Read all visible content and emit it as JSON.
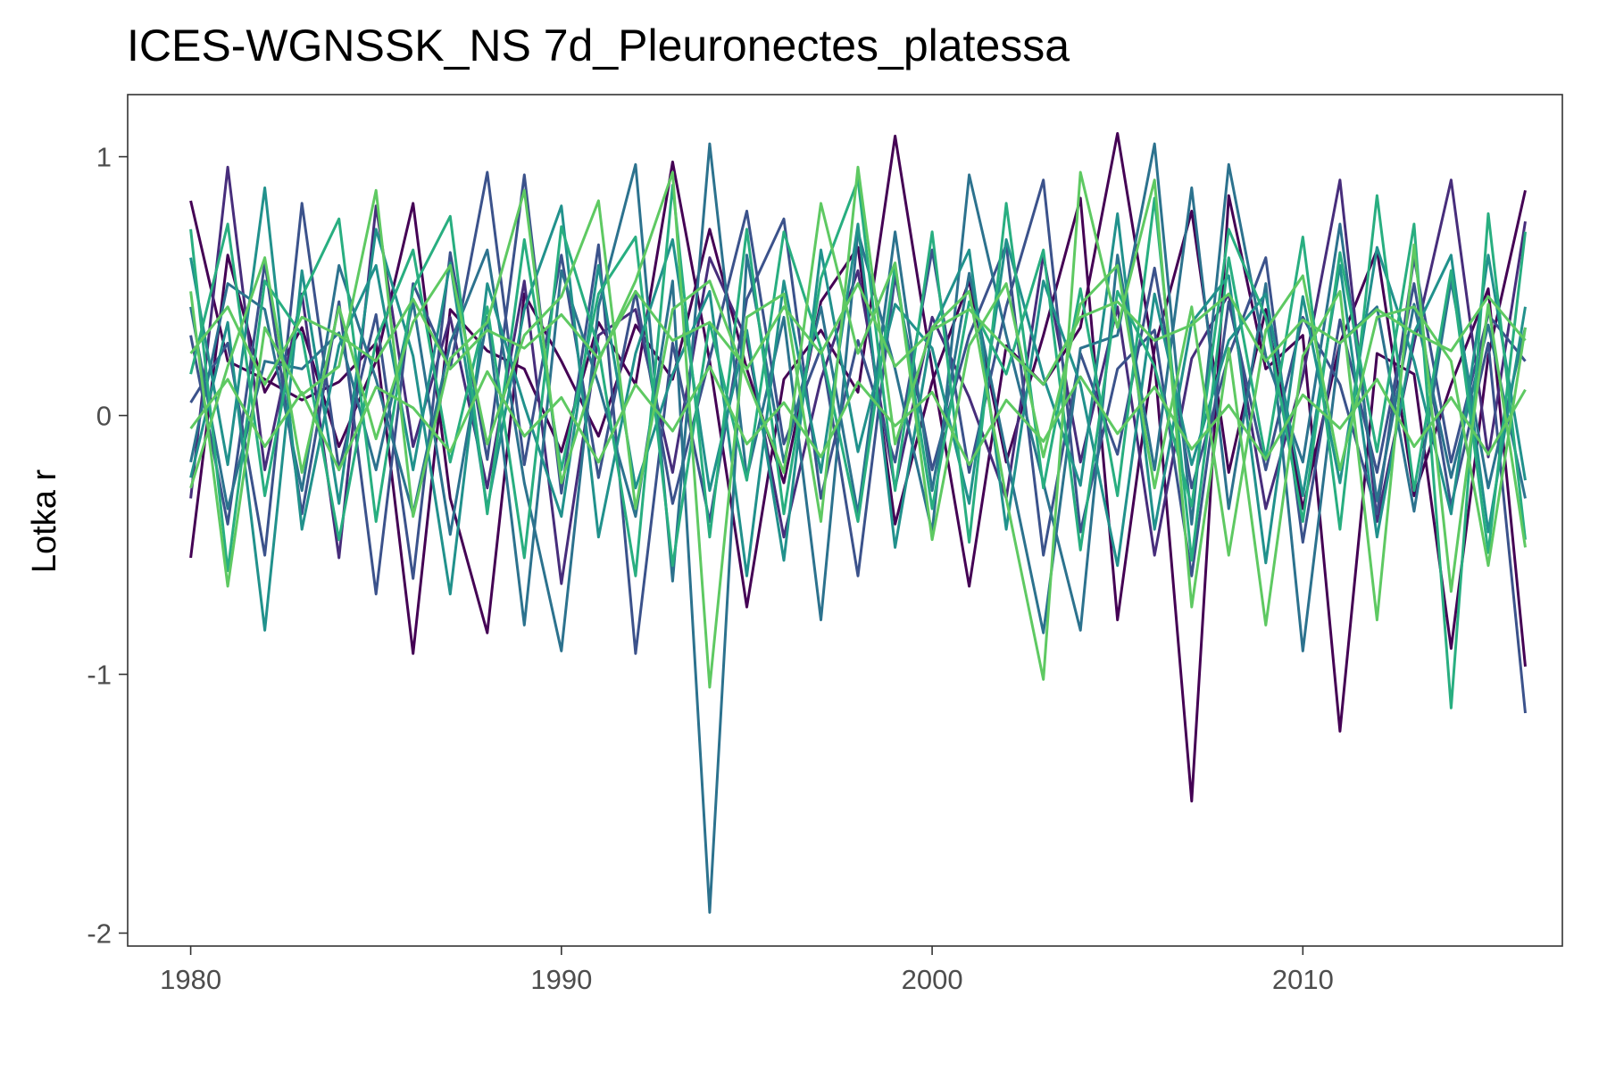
{
  "chart_data": {
    "type": "line",
    "title": "ICES-WGNSSK_NS 7d_Pleuronectes_platessa",
    "xlabel": "",
    "ylabel": "Lotka r",
    "xlim": [
      1978.3,
      2017.0
    ],
    "ylim": [
      -2.05,
      1.24
    ],
    "x_ticks": [
      1980,
      1990,
      2000,
      2010
    ],
    "x_tick_labels": [
      "1980",
      "1990",
      "2000",
      "2010"
    ],
    "y_ticks": [
      -2,
      -1,
      0,
      1
    ],
    "y_tick_labels": [
      "-2",
      "-1",
      "0",
      "1"
    ],
    "grid": false,
    "legend": "none",
    "colors": [
      "#440154",
      "#472d7b",
      "#3b528b",
      "#2c728e",
      "#21918c",
      "#28ae80",
      "#5ec962"
    ],
    "x": [
      1980,
      1981,
      1982,
      1983,
      1984,
      1985,
      1986,
      1987,
      1988,
      1989,
      1990,
      1991,
      1992,
      1993,
      1994,
      1995,
      1996,
      1997,
      1998,
      1999,
      2000,
      2001,
      2002,
      2003,
      2004,
      2005,
      2006,
      2007,
      2008,
      2009,
      2010,
      2011,
      2012,
      2013,
      2014,
      2015,
      2016
    ],
    "series": [
      {
        "color": "#440154",
        "values": [
          0.83,
          0.21,
          0.14,
          0.06,
          0.13,
          0.28,
          -0.92,
          0.41,
          0.25,
          0.18,
          -0.14,
          0.36,
          0.12,
          0.98,
          0.21,
          -0.74,
          0.14,
          0.33,
          0.09,
          1.08,
          0.18,
          -0.66,
          0.27,
          0.12,
          0.34,
          1.09,
          0.21,
          -1.49,
          0.85,
          0.18,
          0.31,
          -1.22,
          0.24,
          0.16,
          -0.9,
          0.23,
          0.87
        ]
      },
      {
        "color": "#440154",
        "values": [
          -0.55,
          0.62,
          0.09,
          0.34,
          -0.12,
          0.21,
          0.82,
          -0.32,
          -0.84,
          0.47,
          0.21,
          -0.08,
          0.35,
          0.14,
          0.72,
          0.18,
          -0.26,
          0.44,
          0.65,
          -0.42,
          0.13,
          0.52,
          -0.18,
          0.31,
          0.84,
          -0.79,
          0.26,
          0.79,
          -0.22,
          0.41,
          -0.36,
          0.28,
          0.64,
          -0.31,
          0.12,
          0.49,
          -0.97
        ]
      },
      {
        "color": "#472d7b",
        "values": [
          -0.32,
          0.96,
          -0.21,
          0.47,
          -0.55,
          0.81,
          -0.12,
          0.38,
          -0.28,
          0.52,
          -0.65,
          0.31,
          0.41,
          -0.22,
          0.61,
          0.29,
          -0.47,
          0.14,
          0.56,
          -0.28,
          0.38,
          0.07,
          -0.32,
          0.62,
          -0.18,
          0.42,
          -0.54,
          0.22,
          0.47,
          -0.36,
          0.15,
          0.91,
          -0.41,
          0.28,
          0.91,
          -0.16,
          0.75
        ]
      },
      {
        "color": "#3b528b",
        "values": [
          0.31,
          -0.42,
          0.59,
          -0.38,
          0.44,
          -0.69,
          0.51,
          0.18,
          0.94,
          -0.19,
          0.62,
          -0.24,
          0.48,
          -0.34,
          0.22,
          0.79,
          -0.11,
          0.26,
          -0.62,
          0.54,
          -0.21,
          0.31,
          0.66,
          -0.54,
          0.24,
          -0.15,
          0.57,
          -0.28,
          0.23,
          0.61,
          -0.49,
          0.37,
          -0.22,
          0.51,
          -0.35,
          0.28,
          -1.15
        ]
      },
      {
        "color": "#3b528b",
        "values": [
          0.05,
          0.28,
          -0.54,
          0.82,
          -0.21,
          0.39,
          -0.63,
          0.63,
          -0.17,
          0.93,
          -0.3,
          0.66,
          -0.92,
          0.28,
          -0.41,
          0.45,
          0.76,
          -0.32,
          0.29,
          -0.18,
          0.64,
          -0.22,
          0.42,
          0.91,
          -0.45,
          0.18,
          0.33,
          -0.62,
          0.44,
          -0.21,
          0.38,
          0.12,
          -0.38,
          0.61,
          -0.18,
          0.39,
          0.21
        ]
      },
      {
        "color": "#2c728e",
        "values": [
          0.42,
          -0.36,
          0.21,
          0.18,
          0.32,
          -0.21,
          0.44,
          -0.46,
          0.38,
          -0.81,
          0.56,
          0.12,
          -0.39,
          0.52,
          -1.92,
          0.62,
          -0.18,
          0.42,
          -0.38,
          0.71,
          -0.29,
          0.55,
          -0.15,
          -0.84,
          0.26,
          0.31,
          1.05,
          -0.42,
          0.97,
          0.23,
          -0.18,
          0.74,
          -0.33,
          0.43,
          -0.24,
          0.35,
          -0.32
        ]
      },
      {
        "color": "#2c728e",
        "values": [
          -0.18,
          0.51,
          0.41,
          -0.29,
          0.58,
          0.14,
          -0.38,
          0.28,
          0.64,
          -0.26,
          -0.91,
          0.42,
          0.97,
          -0.64,
          1.05,
          -0.24,
          0.38,
          -0.79,
          0.71,
          0.18,
          -0.45,
          0.93,
          0.31,
          -0.26,
          -0.83,
          0.62,
          -0.21,
          0.88,
          -0.36,
          0.51,
          -0.91,
          0.28,
          0.42,
          -0.37,
          0.52,
          -0.28,
          0.34
        ]
      },
      {
        "color": "#21918c",
        "values": [
          0.61,
          -0.19,
          0.88,
          -0.44,
          0.27,
          0.58,
          -0.21,
          0.59,
          -0.36,
          0.41,
          0.81,
          -0.47,
          0.24,
          0.68,
          -0.29,
          0.33,
          -0.56,
          0.64,
          -0.14,
          0.43,
          0.26,
          -0.34,
          0.68,
          0.15,
          -0.27,
          0.78,
          -0.44,
          0.36,
          0.54,
          -0.57,
          0.46,
          -0.26,
          0.65,
          0.21,
          -0.38,
          0.62,
          -0.25
        ]
      },
      {
        "color": "#21918c",
        "values": [
          -0.24,
          0.36,
          -0.83,
          0.56,
          -0.34,
          0.72,
          0.23,
          -0.69,
          0.51,
          0.04,
          -0.39,
          0.58,
          -0.28,
          0.16,
          0.48,
          -0.62,
          0.52,
          -0.22,
          0.74,
          -0.51,
          0.33,
          0.64,
          -0.44,
          0.52,
          0.12,
          -0.58,
          0.47,
          -0.19,
          0.29,
          0.47,
          -0.31,
          0.58,
          -0.47,
          0.32,
          0.62,
          -0.45,
          0.42
        ]
      },
      {
        "color": "#28ae80",
        "values": [
          0.72,
          -0.6,
          0.52,
          0.31,
          -0.48,
          0.29,
          0.64,
          -0.18,
          0.42,
          -0.55,
          0.73,
          0.26,
          -0.62,
          0.89,
          -0.47,
          0.72,
          -0.38,
          0.53,
          0.91,
          -0.29,
          0.71,
          -0.49,
          0.82,
          -0.28,
          0.49,
          -0.31,
          0.84,
          -0.56,
          0.61,
          -0.17,
          0.69,
          -0.44,
          0.85,
          -0.29,
          0.56,
          -0.53,
          0.71
        ]
      },
      {
        "color": "#28ae80",
        "values": [
          0.16,
          0.74,
          -0.31,
          0.46,
          0.76,
          -0.41,
          0.49,
          0.77,
          -0.38,
          0.68,
          -0.21,
          0.47,
          0.69,
          -0.58,
          0.36,
          -0.25,
          0.71,
          0.26,
          -0.41,
          0.58,
          -0.36,
          0.44,
          0.16,
          0.64,
          -0.52,
          0.48,
          0.19,
          -0.35,
          0.72,
          0.38,
          -0.41,
          0.63,
          -0.14,
          0.74,
          -1.13,
          0.78,
          -0.48
        ]
      },
      {
        "color": "#5ec962",
        "values": [
          0.48,
          -0.66,
          0.34,
          0.08,
          0.19,
          0.87,
          -0.39,
          0.22,
          0.36,
          0.87,
          -0.26,
          0.21,
          0.52,
          0.94,
          -1.05,
          0.38,
          0.47,
          -0.41,
          0.96,
          -0.11,
          0.34,
          0.48,
          -0.32,
          -1.02,
          0.94,
          0.34,
          0.91,
          -0.74,
          0.26,
          -0.81,
          0.23,
          0.48,
          -0.79,
          0.66,
          -0.68,
          0.43,
          -0.51
        ]
      },
      {
        "color": "#5ec962",
        "values": [
          -0.28,
          0.19,
          0.61,
          -0.22,
          0.42,
          -0.09,
          0.36,
          0.58,
          -0.11,
          0.31,
          0.46,
          0.83,
          -0.36,
          0.41,
          0.52,
          0.14,
          -0.22,
          0.82,
          0.24,
          0.59,
          -0.48,
          0.27,
          0.51,
          -0.16,
          0.43,
          0.58,
          -0.28,
          0.42,
          -0.54,
          0.33,
          0.54,
          -0.21,
          0.38,
          0.42,
          0.21,
          -0.58,
          0.34
        ]
      },
      {
        "color": "#5ec962",
        "values": [
          0.24,
          0.42,
          0.12,
          0.38,
          0.31,
          0.21,
          0.45,
          0.18,
          0.33,
          0.26,
          0.39,
          0.22,
          0.48,
          0.29,
          0.36,
          0.18,
          0.42,
          0.24,
          0.51,
          0.19,
          0.33,
          0.41,
          0.26,
          0.12,
          0.38,
          0.44,
          0.29,
          0.35,
          0.47,
          0.21,
          0.37,
          0.28,
          0.41,
          0.32,
          0.25,
          0.46,
          0.29
        ]
      },
      {
        "color": "#5ec962",
        "values": [
          -0.05,
          0.14,
          -0.12,
          0.09,
          -0.21,
          0.11,
          0.03,
          -0.14,
          0.17,
          -0.08,
          0.07,
          -0.18,
          0.12,
          -0.06,
          0.19,
          -0.11,
          0.05,
          -0.16,
          0.13,
          -0.04,
          0.09,
          -0.19,
          0.06,
          -0.1,
          0.15,
          -0.07,
          0.11,
          -0.13,
          0.04,
          -0.17,
          0.08,
          -0.05,
          0.14,
          -0.12,
          0.07,
          -0.15,
          0.1
        ]
      }
    ]
  }
}
